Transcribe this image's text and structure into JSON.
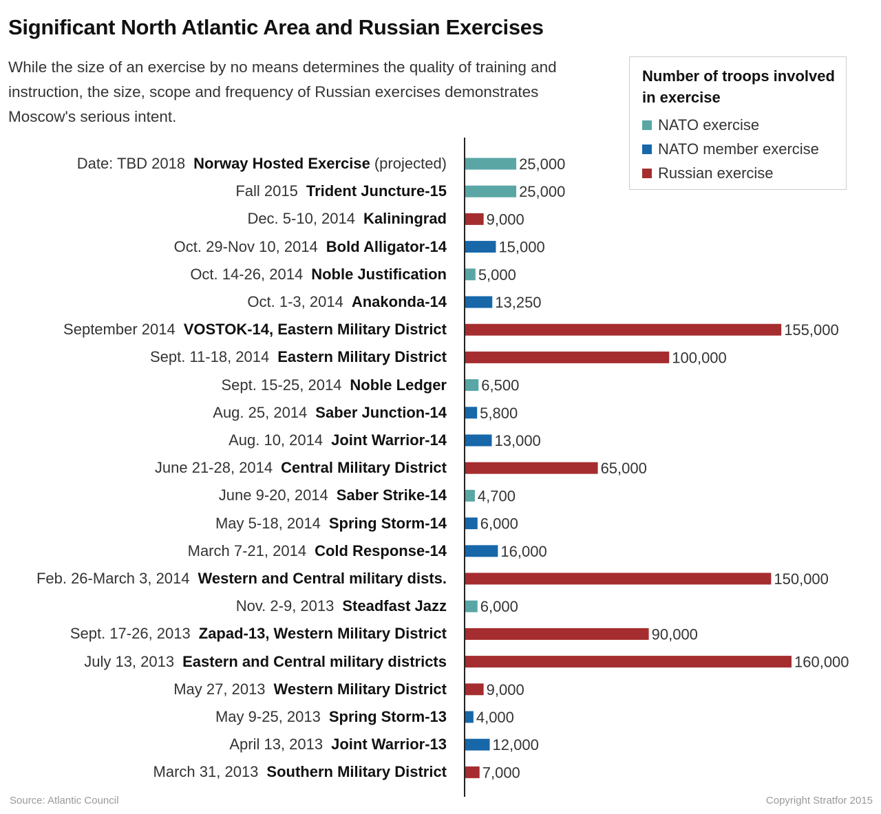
{
  "title": "Significant North Atlantic Area and Russian Exercises",
  "subtitle": "While the size of an exercise by no means determines the quality of training and instruction, the size, scope and frequency of Russian exercises demonstrates Moscow's serious intent.",
  "legend": {
    "title": "Number of troops involved in exercise",
    "items": [
      {
        "label": "NATO exercise",
        "color": "#5aa6a5"
      },
      {
        "label": "NATO member exercise",
        "color": "#1767a9"
      },
      {
        "label": "Russian exercise",
        "color": "#a52d2f"
      }
    ]
  },
  "chart_data": {
    "type": "bar",
    "orientation": "horizontal",
    "xlim": [
      0,
      160000
    ],
    "grid": false,
    "legend_position": "top-right",
    "colors": {
      "nato": "#5aa6a5",
      "member": "#1767a9",
      "russian": "#a52d2f"
    },
    "rows": [
      {
        "date": "Date: TBD 2018",
        "name": "Norway Hosted Exercise",
        "note": "(projected)",
        "value": 25000,
        "value_label": "25,000",
        "kind": "nato"
      },
      {
        "date": "Fall 2015",
        "name": "Trident Juncture-15",
        "value": 25000,
        "value_label": "25,000",
        "kind": "nato"
      },
      {
        "date": "Dec. 5-10, 2014",
        "name": "Kaliningrad",
        "value": 9000,
        "value_label": "9,000",
        "kind": "russian"
      },
      {
        "date": "Oct. 29-Nov 10, 2014",
        "name": "Bold Alligator-14",
        "value": 15000,
        "value_label": "15,000",
        "kind": "member"
      },
      {
        "date": "Oct. 14-26, 2014",
        "name": "Noble Justification",
        "value": 5000,
        "value_label": "5,000",
        "kind": "nato"
      },
      {
        "date": "Oct. 1-3, 2014",
        "name": "Anakonda-14",
        "value": 13250,
        "value_label": "13,250",
        "kind": "member"
      },
      {
        "date": "September 2014",
        "name": "VOSTOK-14, Eastern Military District",
        "value": 155000,
        "value_label": "155,000",
        "kind": "russian"
      },
      {
        "date": "Sept. 11-18, 2014",
        "name": "Eastern Military District",
        "value": 100000,
        "value_label": "100,000",
        "kind": "russian"
      },
      {
        "date": "Sept. 15-25, 2014",
        "name": "Noble Ledger",
        "value": 6500,
        "value_label": "6,500",
        "kind": "nato"
      },
      {
        "date": "Aug. 25, 2014",
        "name": "Saber Junction-14",
        "value": 5800,
        "value_label": "5,800",
        "kind": "member"
      },
      {
        "date": "Aug. 10, 2014",
        "name": "Joint Warrior-14",
        "value": 13000,
        "value_label": "13,000",
        "kind": "member"
      },
      {
        "date": "June 21-28, 2014",
        "name": "Central Military District",
        "value": 65000,
        "value_label": "65,000",
        "kind": "russian"
      },
      {
        "date": "June 9-20, 2014",
        "name": "Saber Strike-14",
        "value": 4700,
        "value_label": "4,700",
        "kind": "nato"
      },
      {
        "date": "May 5-18, 2014",
        "name": "Spring Storm-14",
        "value": 6000,
        "value_label": "6,000",
        "kind": "member"
      },
      {
        "date": "March 7-21, 2014",
        "name": "Cold Response-14",
        "value": 16000,
        "value_label": "16,000",
        "kind": "member"
      },
      {
        "date": "Feb. 26-March 3, 2014",
        "name": "Western and Central military dists.",
        "value": 150000,
        "value_label": "150,000",
        "kind": "russian"
      },
      {
        "date": "Nov. 2-9, 2013",
        "name": "Steadfast Jazz",
        "value": 6000,
        "value_label": "6,000",
        "kind": "nato"
      },
      {
        "date": "Sept. 17-26, 2013",
        "name": "Zapad-13, Western Military District",
        "value": 90000,
        "value_label": "90,000",
        "kind": "russian"
      },
      {
        "date": "July 13, 2013",
        "name": "Eastern and Central military districts",
        "value": 160000,
        "value_label": "160,000",
        "kind": "russian"
      },
      {
        "date": "May 27, 2013",
        "name": "Western Military District",
        "value": 9000,
        "value_label": "9,000",
        "kind": "russian"
      },
      {
        "date": "May 9-25, 2013",
        "name": "Spring Storm-13",
        "value": 4000,
        "value_label": "4,000",
        "kind": "member"
      },
      {
        "date": "April 13, 2013",
        "name": "Joint Warrior-13",
        "value": 12000,
        "value_label": "12,000",
        "kind": "member"
      },
      {
        "date": "March 31, 2013",
        "name": "Southern Military District",
        "value": 7000,
        "value_label": "7,000",
        "kind": "russian"
      }
    ]
  },
  "footer": {
    "source": "Source: Atlantic Council",
    "copyright": "Copyright Stratfor 2015"
  }
}
